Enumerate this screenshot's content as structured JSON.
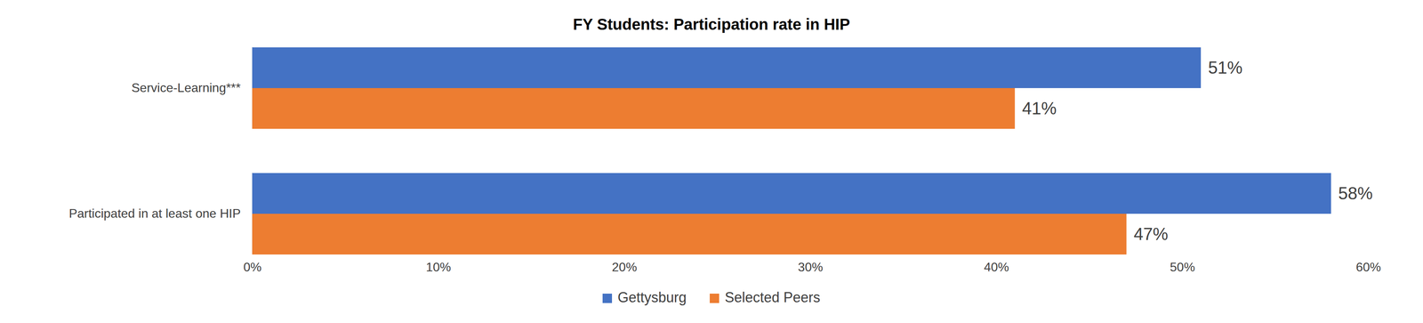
{
  "chart_data": {
    "type": "bar",
    "title": "FY Students: Participation rate in HIP",
    "orientation": "horizontal",
    "categories": [
      "Service-Learning***",
      "Participated in at least one HIP"
    ],
    "series": [
      {
        "name": "Gettysburg",
        "color": "#4472c4",
        "values": [
          51,
          58
        ],
        "value_labels": [
          "51%",
          "58%"
        ]
      },
      {
        "name": "Selected Peers",
        "color": "#ed7d31",
        "values": [
          41,
          47
        ],
        "value_labels": [
          "41%",
          "47%"
        ]
      }
    ],
    "xlim": [
      0,
      60
    ],
    "xticks": [
      {
        "value": 0,
        "label": "0%"
      },
      {
        "value": 10,
        "label": "10%"
      },
      {
        "value": 20,
        "label": "20%"
      },
      {
        "value": 30,
        "label": "30%"
      },
      {
        "value": 40,
        "label": "40%"
      },
      {
        "value": 50,
        "label": "50%"
      },
      {
        "value": 60,
        "label": "60%"
      }
    ],
    "grid": false,
    "data_labels": true,
    "legend": "bottom"
  }
}
